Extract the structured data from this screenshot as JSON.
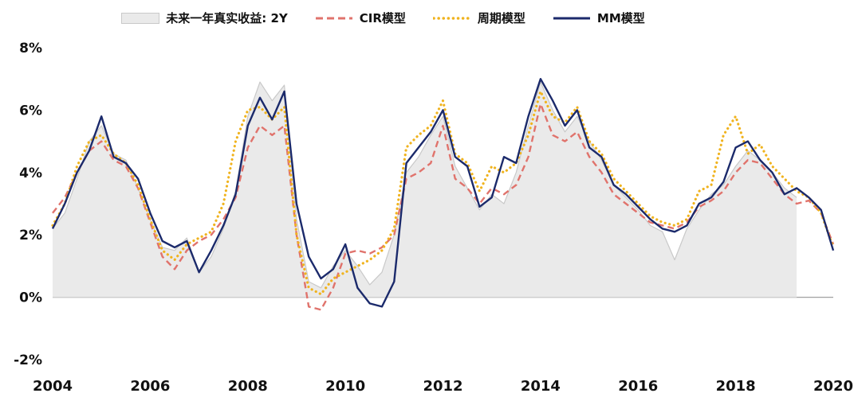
{
  "chart_data": {
    "type": "line",
    "title": "",
    "xlabel": "",
    "ylabel": "",
    "legend_position": "top",
    "grid": false,
    "axis_color": "#a0a0a0",
    "x_range": [
      2004,
      2020
    ],
    "x_step": 0.25,
    "ylim": [
      -2,
      8
    ],
    "yticks": [
      8,
      6,
      4,
      2,
      0,
      -2
    ],
    "ytick_labels": [
      "8%",
      "6%",
      "4%",
      "2%",
      "0%",
      "-2%"
    ],
    "xticks": [
      2004,
      2006,
      2008,
      2010,
      2012,
      2014,
      2016,
      2018,
      2020
    ],
    "xtick_labels": [
      "2004",
      "2006",
      "2008",
      "2010",
      "2012",
      "2014",
      "2016",
      "2018",
      "2020"
    ],
    "series": [
      {
        "name": "未来一年真实收益: 2Y",
        "type": "area",
        "color": "#eaeaea",
        "stroke": "#c9c9c9",
        "values": [
          2.2,
          2.7,
          3.8,
          5.0,
          5.5,
          4.6,
          4.4,
          3.5,
          2.5,
          1.6,
          1.5,
          1.9,
          0.8,
          1.3,
          2.2,
          3.4,
          5.8,
          6.9,
          6.3,
          6.8,
          2.5,
          0.5,
          0.3,
          1.0,
          1.5,
          1.0,
          0.4,
          0.8,
          2.0,
          4.0,
          4.5,
          5.2,
          5.8,
          4.2,
          3.5,
          2.8,
          3.3,
          3.0,
          4.0,
          5.5,
          6.9,
          6.0,
          5.3,
          5.8,
          5.0,
          4.4,
          3.6,
          3.2,
          2.8,
          2.3,
          2.1,
          1.2,
          2.2,
          2.8,
          3.3,
          3.6,
          4.2,
          4.7,
          4.4,
          4.0,
          3.5,
          3.2,
          null,
          null,
          null
        ]
      },
      {
        "name": "CIR模型",
        "type": "dashed",
        "color": "#e0736c",
        "values": [
          2.7,
          3.2,
          4.0,
          4.7,
          5.0,
          4.4,
          4.2,
          3.5,
          2.4,
          1.3,
          0.9,
          1.5,
          1.8,
          2.0,
          2.5,
          3.2,
          4.8,
          5.5,
          5.2,
          5.5,
          2.0,
          -0.3,
          -0.4,
          0.3,
          1.4,
          1.5,
          1.4,
          1.6,
          2.0,
          3.8,
          4.0,
          4.3,
          5.5,
          3.8,
          3.5,
          3.0,
          3.5,
          3.3,
          3.6,
          4.5,
          6.2,
          5.2,
          5.0,
          5.3,
          4.5,
          4.0,
          3.3,
          3.0,
          2.7,
          2.4,
          2.3,
          2.2,
          2.4,
          2.9,
          3.1,
          3.4,
          4.0,
          4.4,
          4.3,
          3.8,
          3.3,
          3.0,
          3.1,
          2.7,
          1.7
        ]
      },
      {
        "name": "周期模型",
        "type": "dotted",
        "color": "#f0b31e",
        "values": [
          2.3,
          3.0,
          4.2,
          5.0,
          5.2,
          4.6,
          4.3,
          3.6,
          2.5,
          1.5,
          1.2,
          1.7,
          1.9,
          2.1,
          3.0,
          5.0,
          6.0,
          6.1,
          5.7,
          6.1,
          2.0,
          0.3,
          0.1,
          0.6,
          0.8,
          1.0,
          1.2,
          1.5,
          2.2,
          4.8,
          5.2,
          5.5,
          6.3,
          4.6,
          4.3,
          3.4,
          4.2,
          4.0,
          4.3,
          5.2,
          6.6,
          5.8,
          5.6,
          6.1,
          5.0,
          4.6,
          3.8,
          3.4,
          3.0,
          2.6,
          2.4,
          2.3,
          2.5,
          3.4,
          3.6,
          5.2,
          5.8,
          4.6,
          4.9,
          4.2,
          3.8,
          3.4,
          3.2,
          2.7,
          1.6
        ]
      },
      {
        "name": "MM模型",
        "type": "solid",
        "color": "#1b2a6b",
        "values": [
          2.2,
          3.0,
          4.0,
          4.7,
          5.8,
          4.5,
          4.3,
          3.8,
          2.7,
          1.8,
          1.6,
          1.8,
          0.8,
          1.5,
          2.3,
          3.3,
          5.5,
          6.4,
          5.7,
          6.6,
          3.0,
          1.3,
          0.6,
          0.9,
          1.7,
          0.3,
          -0.2,
          -0.3,
          0.5,
          4.3,
          4.8,
          5.3,
          6.0,
          4.5,
          4.2,
          2.9,
          3.2,
          4.5,
          4.3,
          5.8,
          7.0,
          6.3,
          5.5,
          6.0,
          4.8,
          4.5,
          3.6,
          3.3,
          2.9,
          2.5,
          2.2,
          2.1,
          2.3,
          3.0,
          3.2,
          3.7,
          4.8,
          5.0,
          4.4,
          4.0,
          3.3,
          3.5,
          3.2,
          2.8,
          1.5
        ]
      }
    ]
  }
}
